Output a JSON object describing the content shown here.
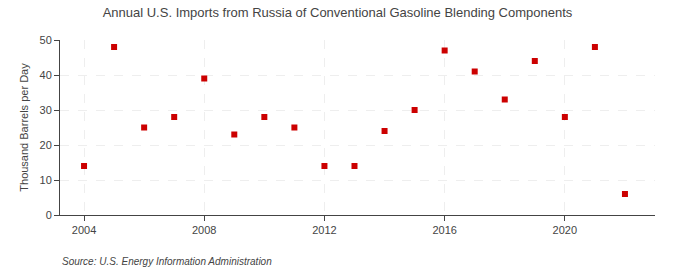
{
  "chart_data": {
    "type": "scatter",
    "title": "Annual U.S. Imports from Russia of Conventional Gasoline Blending Components",
    "y_label": "Thousand Barrels per Day",
    "source": "Source: U.S. Energy Information Administration",
    "x": [
      2004,
      2005,
      2006,
      2007,
      2008,
      2009,
      2010,
      2011,
      2012,
      2013,
      2014,
      2015,
      2016,
      2017,
      2018,
      2019,
      2020,
      2021,
      2022
    ],
    "values": [
      14,
      48,
      25,
      28,
      39,
      23,
      28,
      25,
      14,
      14,
      24,
      30,
      47,
      41,
      33,
      44,
      28,
      48,
      6
    ],
    "color": "#cc0000",
    "marker": "square",
    "xlim": [
      2003.2,
      2023.0
    ],
    "xticks": [
      2004,
      2008,
      2012,
      2016,
      2020
    ],
    "ylim": [
      0,
      50
    ],
    "yticks": [
      0,
      10,
      20,
      30,
      40,
      50
    ],
    "grid": true
  }
}
